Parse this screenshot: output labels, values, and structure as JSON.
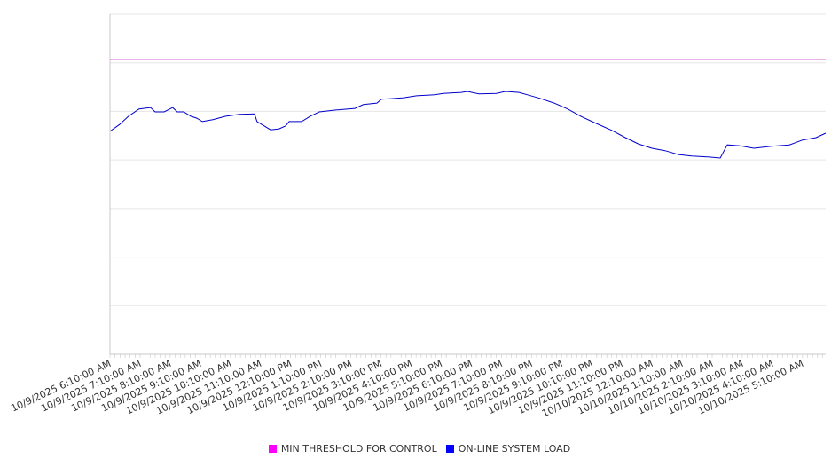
{
  "chart_data": {
    "type": "line",
    "title": "",
    "xlabel": "",
    "ylabel": "",
    "ylim": [
      0,
      70
    ],
    "grid": true,
    "legend_position": "bottom",
    "x_unit": "minutes since 10/9/2025 6:10:00 AM",
    "xlim": [
      0,
      1426
    ],
    "tick_labels": [
      "10/9/2025 6:10:00 AM",
      "10/9/2025 7:10:00 AM",
      "10/9/2025 8:10:00 AM",
      "10/9/2025 9:10:00 AM",
      "10/9/2025 10:10:00 AM",
      "10/9/2025 11:10:00 AM",
      "10/9/2025 12:10:00 PM",
      "10/9/2025 1:10:00 PM",
      "10/9/2025 2:10:00 PM",
      "10/9/2025 3:10:00 PM",
      "10/9/2025 4:10:00 PM",
      "10/9/2025 5:10:00 PM",
      "10/9/2025 6:10:00 PM",
      "10/9/2025 7:10:00 PM",
      "10/9/2025 8:10:00 PM",
      "10/9/2025 9:10:00 PM",
      "10/9/2025 10:10:00 PM",
      "10/9/2025 11:10:00 PM",
      "10/10/2025 12:10:00 AM",
      "10/10/2025 1:10:00 AM",
      "10/10/2025 2:10:00 AM",
      "10/10/2025 3:10:00 AM",
      "10/10/2025 4:10:00 AM",
      "10/10/2025 5:10:00 AM"
    ],
    "series": [
      {
        "name": "MIN THRESHOLD FOR CONTROL",
        "color": "#ff00ff",
        "line_color": "#cc33cc",
        "points": [
          [
            0,
            60.7
          ],
          [
            1426,
            60.7
          ]
        ]
      },
      {
        "name": "ON-LINE SYSTEM LOAD",
        "color": "#0000ff",
        "line_color": "#0000cc",
        "points": [
          [
            0,
            45.9
          ],
          [
            19,
            47.3
          ],
          [
            37,
            49.0
          ],
          [
            58,
            50.5
          ],
          [
            81,
            50.8
          ],
          [
            90,
            49.9
          ],
          [
            108,
            49.9
          ],
          [
            125,
            50.8
          ],
          [
            134,
            49.9
          ],
          [
            147,
            49.9
          ],
          [
            161,
            49.0
          ],
          [
            173,
            48.6
          ],
          [
            184,
            47.9
          ],
          [
            205,
            48.3
          ],
          [
            231,
            49.0
          ],
          [
            258,
            49.4
          ],
          [
            288,
            49.5
          ],
          [
            293,
            47.9
          ],
          [
            304,
            47.2
          ],
          [
            320,
            46.2
          ],
          [
            337,
            46.4
          ],
          [
            350,
            47.0
          ],
          [
            357,
            47.9
          ],
          [
            382,
            47.9
          ],
          [
            399,
            49.0
          ],
          [
            417,
            49.9
          ],
          [
            452,
            50.3
          ],
          [
            488,
            50.6
          ],
          [
            505,
            51.4
          ],
          [
            532,
            51.7
          ],
          [
            541,
            52.5
          ],
          [
            558,
            52.6
          ],
          [
            585,
            52.8
          ],
          [
            611,
            53.2
          ],
          [
            647,
            53.4
          ],
          [
            664,
            53.7
          ],
          [
            700,
            53.9
          ],
          [
            712,
            54.1
          ],
          [
            735,
            53.6
          ],
          [
            770,
            53.7
          ],
          [
            788,
            54.1
          ],
          [
            815,
            53.9
          ],
          [
            832,
            53.4
          ],
          [
            859,
            52.6
          ],
          [
            885,
            51.7
          ],
          [
            912,
            50.5
          ],
          [
            938,
            49.0
          ],
          [
            965,
            47.7
          ],
          [
            1000,
            46.1
          ],
          [
            1027,
            44.6
          ],
          [
            1053,
            43.3
          ],
          [
            1080,
            42.4
          ],
          [
            1106,
            41.9
          ],
          [
            1133,
            41.1
          ],
          [
            1159,
            40.8
          ],
          [
            1194,
            40.6
          ],
          [
            1216,
            40.4
          ],
          [
            1230,
            43.1
          ],
          [
            1256,
            42.9
          ],
          [
            1283,
            42.4
          ],
          [
            1318,
            42.8
          ],
          [
            1354,
            43.1
          ],
          [
            1380,
            44.1
          ],
          [
            1407,
            44.6
          ],
          [
            1426,
            45.5
          ]
        ]
      }
    ]
  }
}
